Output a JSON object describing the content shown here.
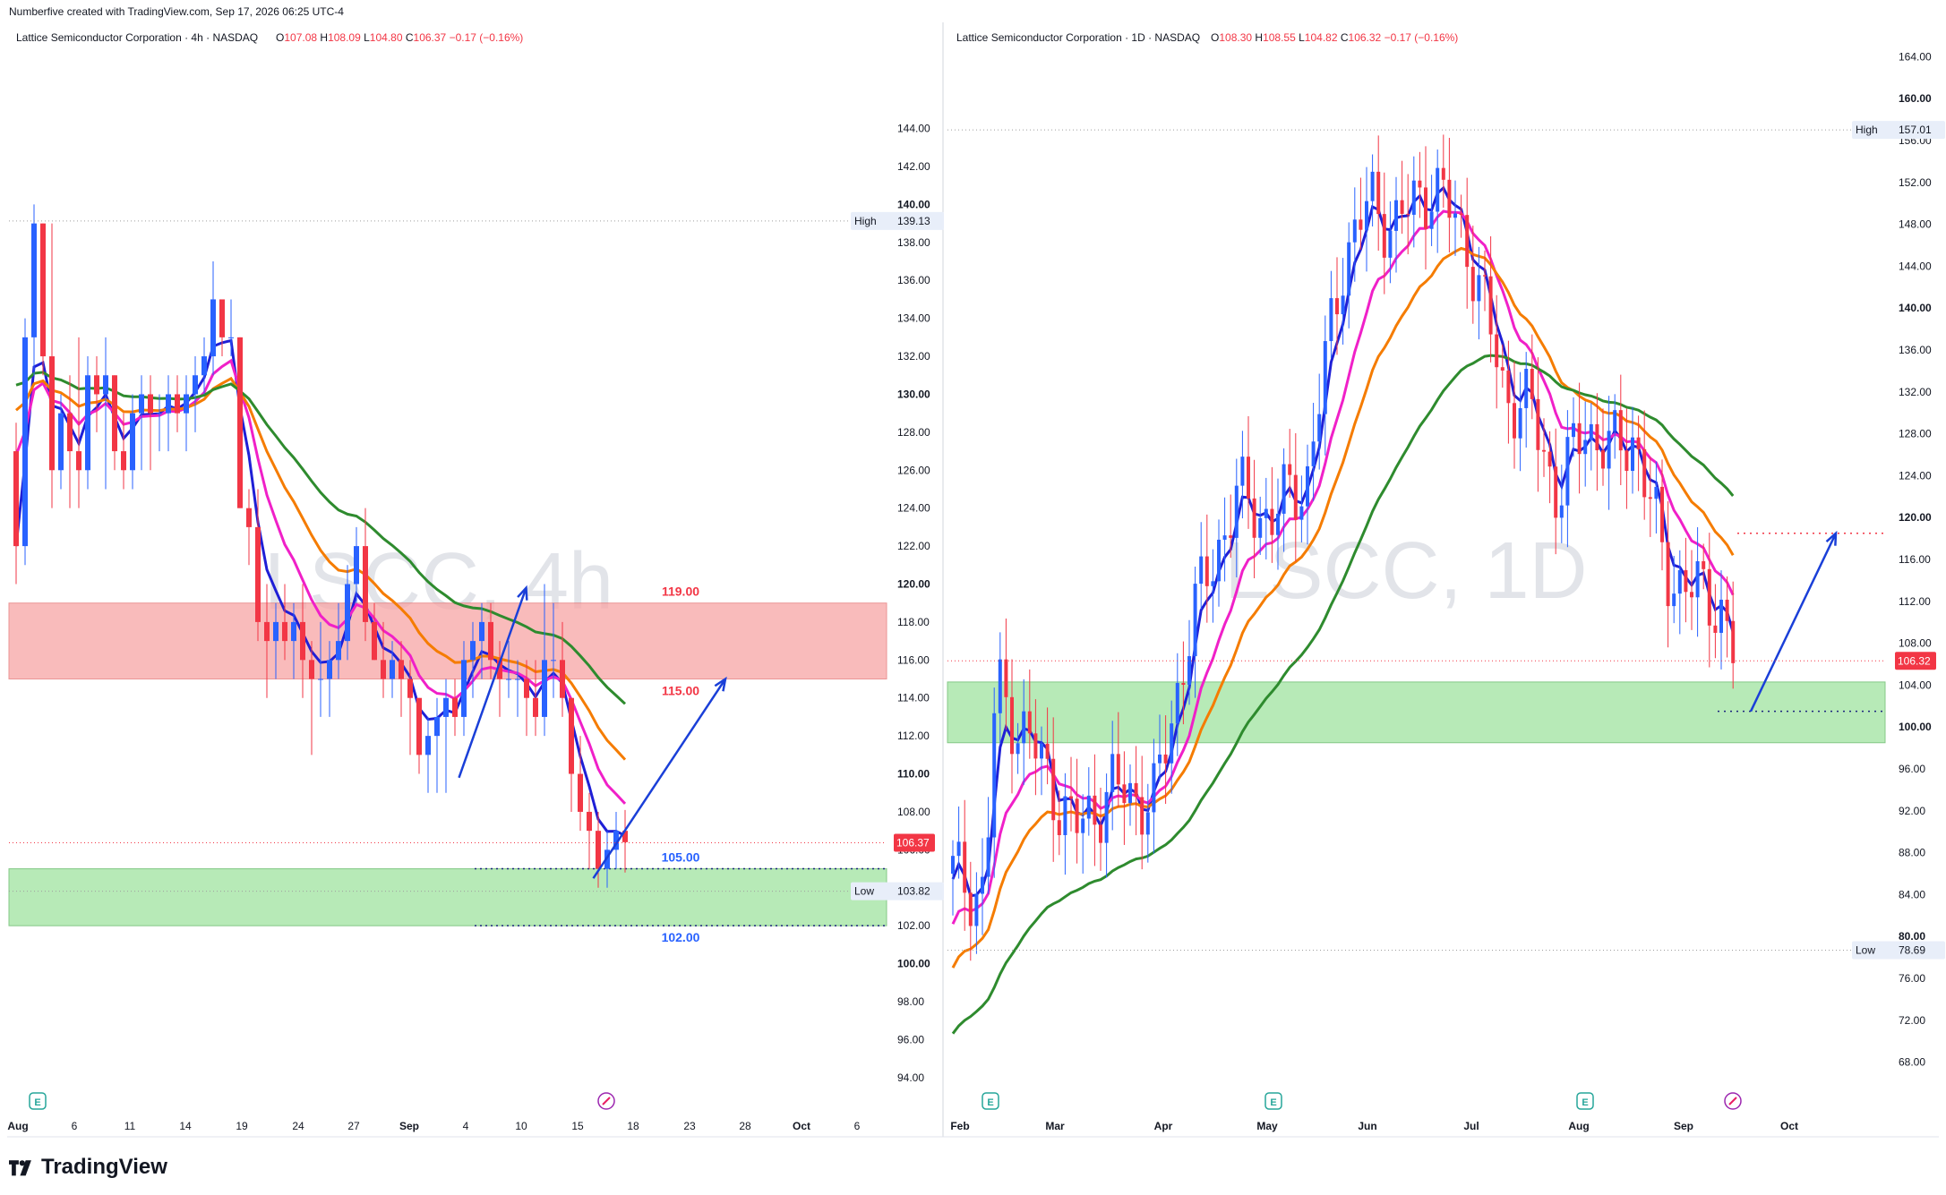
{
  "header": {
    "created_text": "Numberfive created with TradingView.com, Sep 17, 2026 06:25 UTC-4"
  },
  "footer": {
    "brand": "TradingView"
  },
  "colors": {
    "up": "#2962ff",
    "down": "#f23645",
    "ema_fast": "#1f1fd6",
    "ema_mid": "#f020c8",
    "ema_slow": "#f57c00",
    "ema_long": "#2e8b2e",
    "resistance_zone": "#f8a5a5",
    "support_zone": "#a6e6a6",
    "arrow": "#1a3fd8"
  },
  "chart_data": [
    {
      "type": "candlestick",
      "symbol_title": "Lattice Semiconductor Corporation · 4h · NASDAQ",
      "watermark": "LSCC, 4h",
      "ohlc": {
        "O": "107.08",
        "H": "108.09",
        "L": "104.80",
        "C": "106.37",
        "chg": "−0.17 (−0.16%)"
      },
      "y_ticks": [
        "144.00",
        "142.00",
        "140.00",
        "138.00",
        "136.00",
        "134.00",
        "132.00",
        "130.00",
        "128.00",
        "126.00",
        "124.00",
        "122.00",
        "120.00",
        "118.00",
        "116.00",
        "114.00",
        "112.00",
        "110.00",
        "108.00",
        "106.00",
        "104.00",
        "102.00",
        "100.00",
        "98.00",
        "96.00",
        "94.00"
      ],
      "x_ticks": [
        "Aug",
        "6",
        "11",
        "14",
        "19",
        "24",
        "27",
        "Sep",
        "4",
        "10",
        "15",
        "18",
        "23",
        "28",
        "Oct",
        "6"
      ],
      "ylim": [
        93,
        147
      ],
      "high": {
        "label": "High",
        "value": "139.13"
      },
      "low": {
        "label": "Low",
        "value": "103.82"
      },
      "last": "106.37",
      "zones": [
        {
          "kind": "resistance",
          "from": 115,
          "to": 119,
          "top_label": "119.00",
          "bottom_label": "115.00"
        },
        {
          "kind": "support",
          "from": 102,
          "to": 105,
          "top_label": "105.00",
          "bottom_label": "102.00"
        }
      ],
      "candles_ohlc": [
        [
          127,
          128.5,
          120,
          122
        ],
        [
          122,
          134,
          121,
          133
        ],
        [
          133,
          140,
          131,
          139
        ],
        [
          139,
          139,
          131,
          132
        ],
        [
          132,
          139,
          124,
          126
        ],
        [
          126,
          130,
          125,
          129
        ],
        [
          129,
          131,
          124,
          127
        ],
        [
          127,
          133,
          124,
          126
        ],
        [
          126,
          132,
          125,
          131
        ],
        [
          131,
          132,
          128,
          130
        ],
        [
          130,
          133,
          125,
          131
        ],
        [
          131,
          131,
          126,
          127
        ],
        [
          127,
          129,
          125,
          126
        ],
        [
          126,
          130,
          125,
          129
        ],
        [
          129,
          131,
          126,
          130
        ],
        [
          130,
          131,
          126,
          129
        ],
        [
          129,
          130,
          127,
          129
        ],
        [
          129,
          131,
          127,
          130
        ],
        [
          130,
          131,
          128,
          129
        ],
        [
          129,
          131,
          127,
          130
        ],
        [
          130,
          132,
          128,
          131
        ],
        [
          131,
          133,
          130,
          132
        ],
        [
          132,
          137,
          131,
          135
        ],
        [
          135,
          135,
          132,
          133
        ],
        [
          133,
          135,
          132,
          133
        ],
        [
          133,
          133,
          124,
          124
        ],
        [
          124,
          125,
          121,
          123
        ],
        [
          123,
          125,
          117,
          118
        ],
        [
          118,
          120,
          114,
          117
        ],
        [
          117,
          119,
          115,
          118
        ],
        [
          118,
          120,
          116,
          117
        ],
        [
          117,
          119,
          115,
          118
        ],
        [
          118,
          120,
          114,
          116
        ],
        [
          116,
          117,
          111,
          115
        ],
        [
          115,
          118,
          113,
          115
        ],
        [
          115,
          117,
          113,
          116
        ],
        [
          116,
          119,
          115,
          117
        ],
        [
          117,
          121,
          116,
          120
        ],
        [
          120,
          123,
          119,
          122
        ],
        [
          122,
          124,
          117,
          118
        ],
        [
          118,
          119,
          116,
          116
        ],
        [
          116,
          118,
          114,
          115
        ],
        [
          115,
          117,
          114,
          116
        ],
        [
          116,
          117,
          113,
          115
        ],
        [
          115,
          116,
          111,
          114
        ],
        [
          114,
          114,
          110,
          111
        ],
        [
          111,
          113,
          109,
          112
        ],
        [
          112,
          114,
          109,
          113
        ],
        [
          113,
          115,
          109,
          114
        ],
        [
          114,
          115,
          112,
          113
        ],
        [
          113,
          117,
          112,
          116
        ],
        [
          116,
          118,
          114,
          117
        ],
        [
          117,
          119,
          115,
          118
        ],
        [
          118,
          119,
          115,
          116
        ],
        [
          116,
          117,
          113,
          115
        ],
        [
          115,
          117,
          114,
          115
        ],
        [
          115,
          116,
          113,
          115
        ],
        [
          115,
          116,
          112,
          114
        ],
        [
          114,
          116,
          112,
          113
        ],
        [
          113,
          120,
          112,
          116
        ],
        [
          116,
          119,
          114,
          116
        ],
        [
          116,
          118,
          113,
          114
        ],
        [
          114,
          114,
          108,
          110
        ],
        [
          110,
          112,
          107,
          108
        ],
        [
          108,
          109,
          105,
          107
        ],
        [
          107,
          108,
          104,
          105
        ],
        [
          105,
          107,
          104,
          106
        ],
        [
          106,
          108,
          105,
          107
        ],
        [
          107,
          108.1,
          104.8,
          106.4
        ]
      ],
      "drawn_arrows": [
        {
          "from": [
            4.2,
            109.8
          ],
          "to": [
            10.2,
            119.8
          ]
        },
        {
          "from": [
            16.2,
            104.5
          ],
          "to": [
            28,
            115
          ]
        }
      ]
    },
    {
      "type": "candlestick",
      "symbol_title": "Lattice Semiconductor Corporation · 1D · NASDAQ",
      "watermark": "LSCC, 1D",
      "ohlc": {
        "O": "108.30",
        "H": "108.55",
        "L": "104.82",
        "C": "106.32",
        "chg": "−0.17 (−0.16%)"
      },
      "y_ticks": [
        "164.00",
        "160.00",
        "156.00",
        "152.00",
        "148.00",
        "144.00",
        "140.00",
        "136.00",
        "132.00",
        "128.00",
        "124.00",
        "120.00",
        "116.00",
        "112.00",
        "108.00",
        "104.00",
        "100.00",
        "96.00",
        "92.00",
        "88.00",
        "84.00",
        "80.00",
        "76.00",
        "72.00",
        "68.00"
      ],
      "x_ticks": [
        "Feb",
        "Mar",
        "Apr",
        "May",
        "Jun",
        "Jul",
        "Aug",
        "Sep",
        "Oct"
      ],
      "ylim": [
        66,
        166
      ],
      "high": {
        "label": "High",
        "value": "157.01"
      },
      "low": {
        "label": "Low",
        "value": "78.69"
      },
      "last": "106.32",
      "zones": [
        {
          "kind": "support",
          "from": 98.5,
          "to": 104.3
        }
      ],
      "drawn_arrows": [
        {
          "from": [
            1405,
            101.5
          ],
          "to": [
            1476,
            118.5
          ]
        }
      ]
    }
  ]
}
